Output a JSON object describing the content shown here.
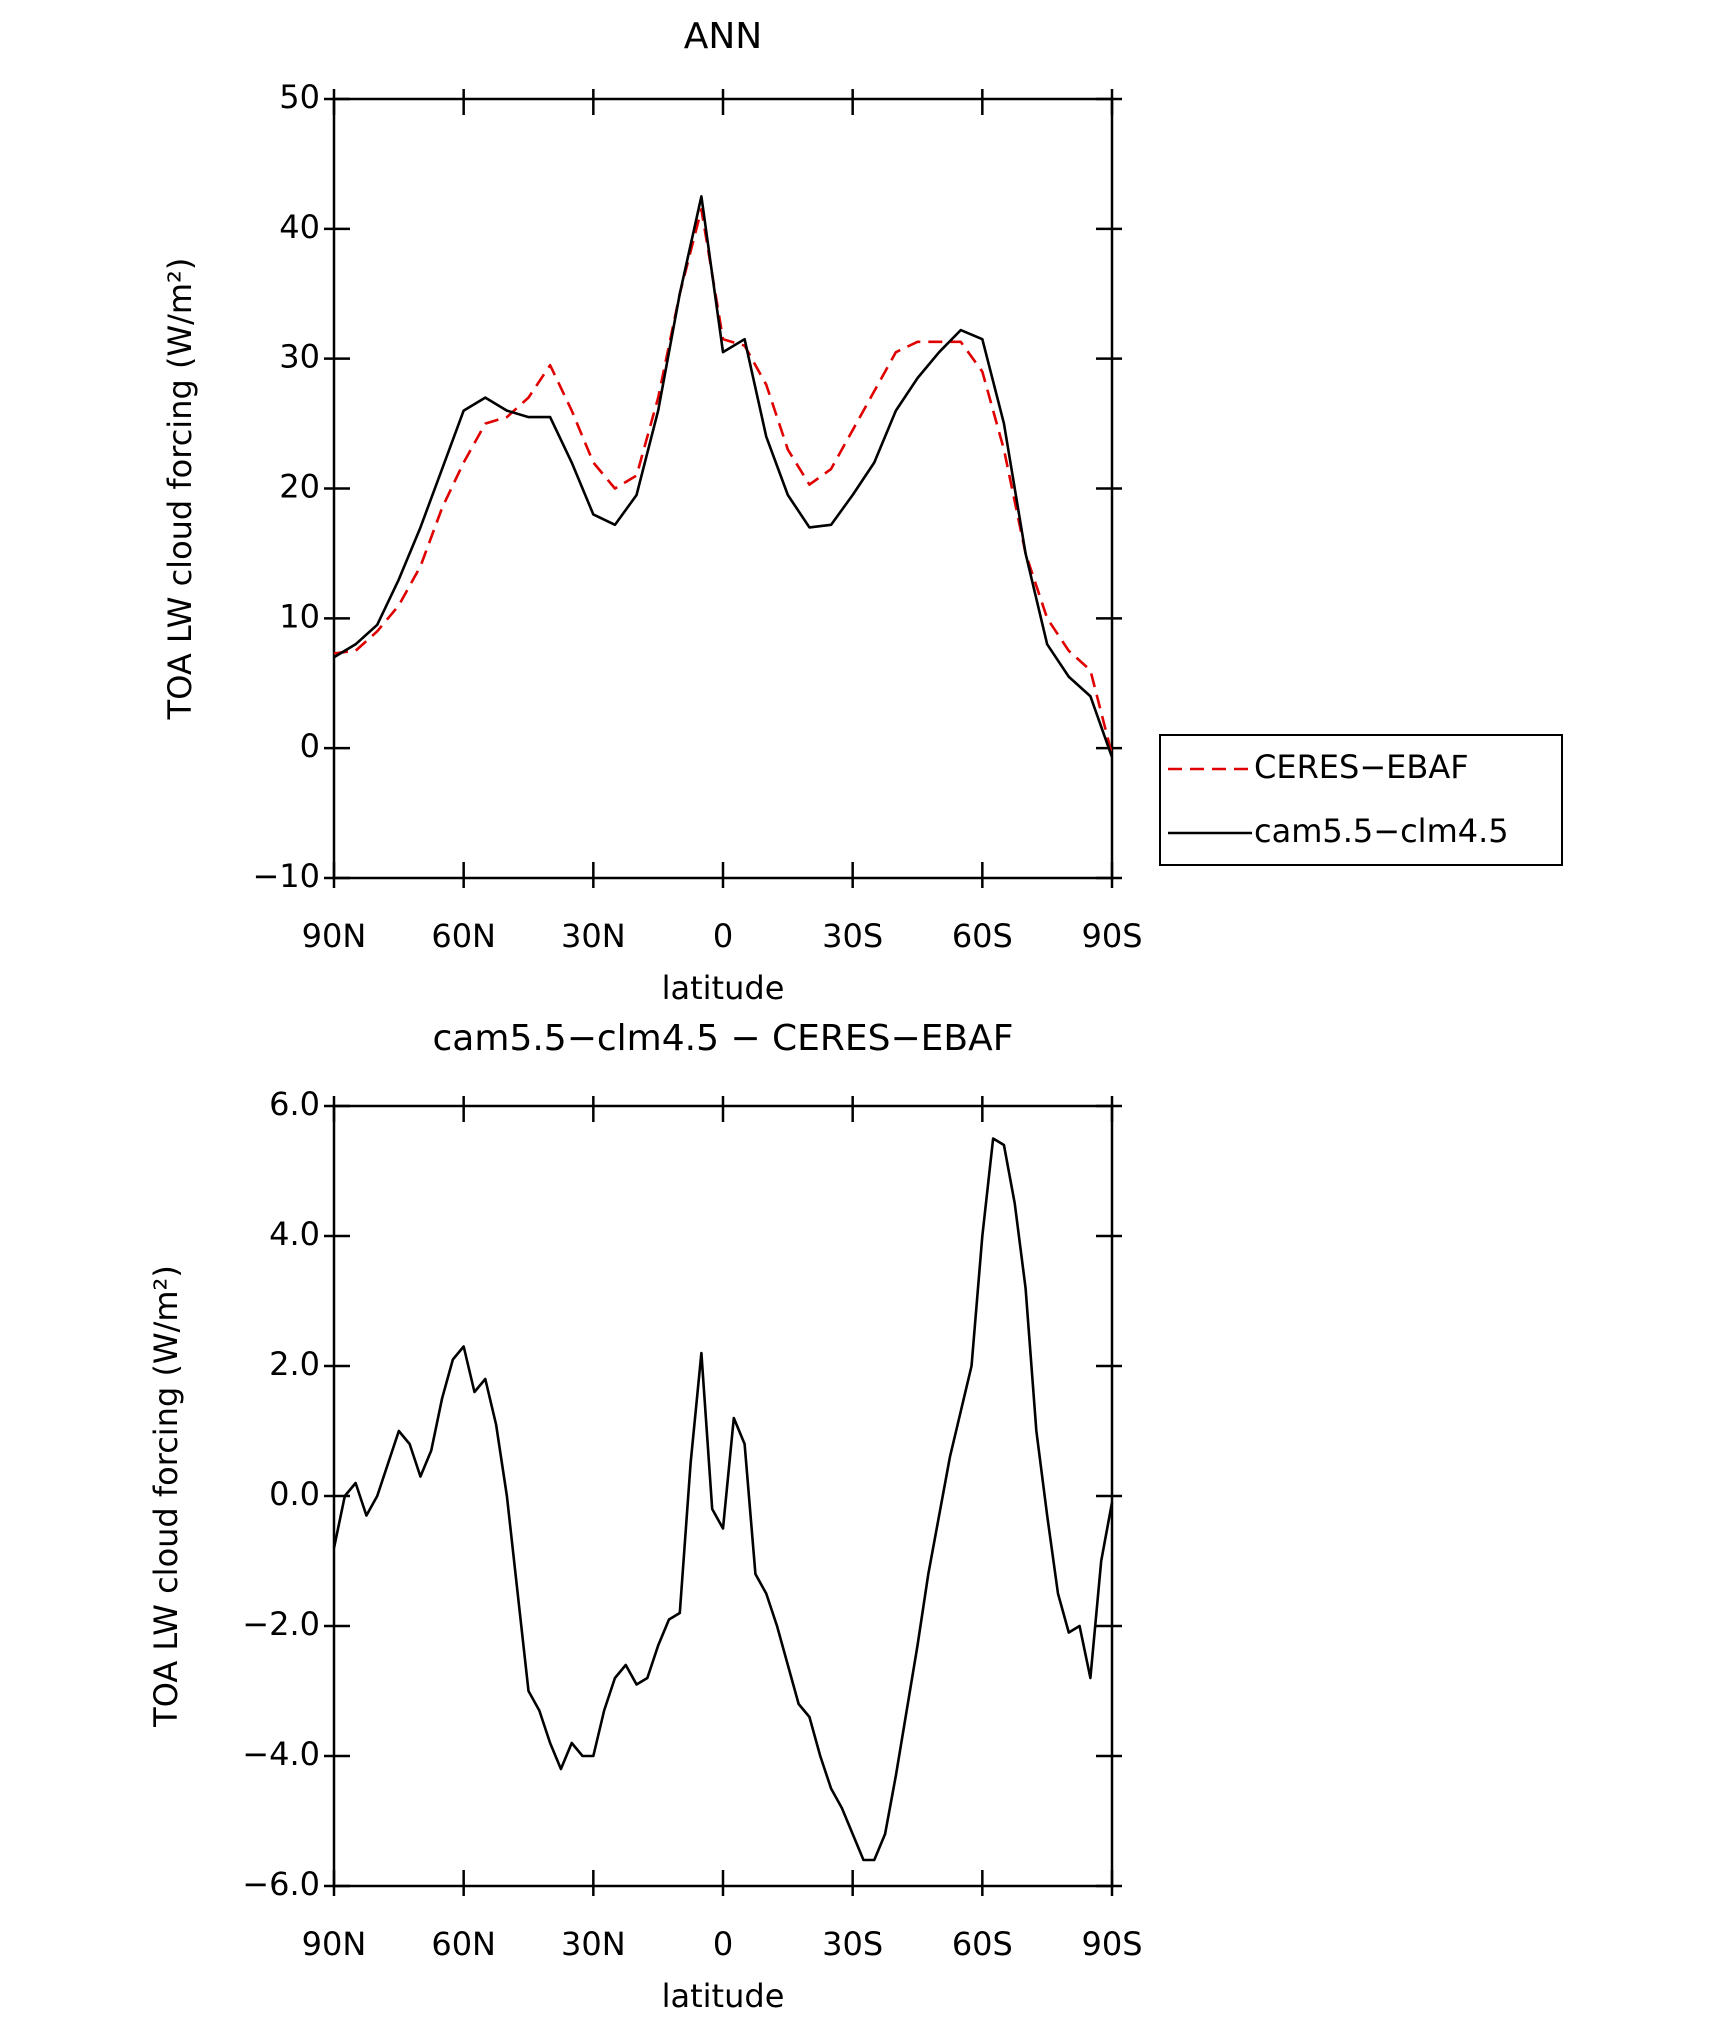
{
  "chart_data": [
    {
      "type": "line",
      "title": "ANN",
      "xlabel": "latitude",
      "ylabel": "TOA LW cloud forcing (W/m²)",
      "x": [
        90,
        85,
        80,
        75,
        70,
        65,
        60,
        55,
        50,
        45,
        40,
        35,
        30,
        25,
        20,
        15,
        10,
        5,
        0,
        -5,
        -10,
        -15,
        -20,
        -25,
        -30,
        -35,
        -40,
        -45,
        -50,
        -55,
        -60,
        -65,
        -70,
        -75,
        -80,
        -85,
        -90
      ],
      "series": [
        {
          "name": "CERES−EBAF",
          "color": "#e00000",
          "dash": "dashed",
          "values": [
            7.3,
            7.5,
            9,
            11,
            14,
            18.5,
            22,
            25,
            25.5,
            27,
            29.5,
            26,
            22,
            20,
            21,
            27,
            35,
            41.5,
            31.5,
            31,
            28,
            23,
            20.3,
            21.5,
            24.5,
            27.5,
            30.5,
            31.3,
            31.3,
            31.3,
            29,
            23,
            15,
            10,
            7.5,
            6,
            -0.5
          ]
        },
        {
          "name": "cam5.5−clm4.5",
          "color": "#000000",
          "dash": "solid",
          "values": [
            7,
            8,
            9.5,
            13,
            17,
            21.5,
            26,
            27,
            26,
            25.5,
            25.5,
            22,
            18,
            17.2,
            19.5,
            26,
            35,
            42.5,
            30.5,
            31.5,
            24,
            19.5,
            17,
            17.2,
            19.5,
            22,
            26,
            28.5,
            30.5,
            32.2,
            31.5,
            25,
            15,
            8,
            5.5,
            4,
            -0.7
          ]
        }
      ],
      "xlim": [
        90,
        -90
      ],
      "xticks": [
        {
          "value": 90,
          "label": "90N"
        },
        {
          "value": 60,
          "label": "60N"
        },
        {
          "value": 30,
          "label": "30N"
        },
        0,
        {
          "value": -30,
          "label": "30S"
        },
        {
          "value": -60,
          "label": "60S"
        },
        {
          "value": -90,
          "label": "90S"
        }
      ],
      "ylim": [
        -10,
        50
      ],
      "yticks": [
        {
          "value": -10,
          "label": "−10"
        },
        0,
        10,
        20,
        30,
        40,
        50
      ],
      "legend": "outside-right"
    },
    {
      "type": "line",
      "title": "cam5.5−clm4.5 − CERES−EBAF",
      "xlabel": "latitude",
      "ylabel": "TOA LW cloud forcing (W/m²)",
      "x": [
        90,
        87.5,
        85,
        82.5,
        80,
        77.5,
        75,
        72.5,
        70,
        67.5,
        65,
        62.5,
        60,
        57.5,
        55,
        52.5,
        50,
        47.5,
        45,
        42.5,
        40,
        37.5,
        35,
        32.5,
        30,
        27.5,
        25,
        22.5,
        20,
        17.5,
        15,
        12.5,
        10,
        7.5,
        5,
        2.5,
        0,
        -2.5,
        -5,
        -7.5,
        -10,
        -12.5,
        -15,
        -17.5,
        -20,
        -22.5,
        -25,
        -27.5,
        -30,
        -32.5,
        -35,
        -37.5,
        -40,
        -42.5,
        -45,
        -47.5,
        -50,
        -52.5,
        -55,
        -57.5,
        -60,
        -62.5,
        -65,
        -67.5,
        -70,
        -72.5,
        -75,
        -77.5,
        -80,
        -82.5,
        -85,
        -87.5,
        -90
      ],
      "series": [
        {
          "name": "cam5.5−clm4.5 − CERES−EBAF",
          "color": "#000000",
          "dash": "solid",
          "values": [
            -0.8,
            0,
            0.2,
            -0.3,
            0,
            0.5,
            1.0,
            0.8,
            0.3,
            0.7,
            1.5,
            2.1,
            2.3,
            1.6,
            1.8,
            1.1,
            0,
            -1.5,
            -3.0,
            -3.3,
            -3.8,
            -4.2,
            -3.8,
            -4.0,
            -4.0,
            -3.3,
            -2.8,
            -2.6,
            -2.9,
            -2.8,
            -2.3,
            -1.9,
            -1.8,
            0.5,
            2.2,
            -0.2,
            -0.5,
            1.2,
            0.8,
            -1.2,
            -1.5,
            -2.0,
            -2.6,
            -3.2,
            -3.4,
            -4.0,
            -4.5,
            -4.8,
            -5.2,
            -5.6,
            -5.6,
            -5.2,
            -4.3,
            -3.3,
            -2.3,
            -1.2,
            -0.3,
            0.6,
            1.3,
            2.0,
            4.0,
            5.5,
            5.4,
            4.5,
            3.2,
            1.0,
            -0.3,
            -1.5,
            -2.1,
            -2.0,
            -2.8,
            -1.0,
            -0.1
          ]
        }
      ],
      "xlim": [
        90,
        -90
      ],
      "xticks": [
        {
          "value": 90,
          "label": "90N"
        },
        {
          "value": 60,
          "label": "60N"
        },
        {
          "value": 30,
          "label": "30N"
        },
        0,
        {
          "value": -30,
          "label": "30S"
        },
        {
          "value": -60,
          "label": "60S"
        },
        {
          "value": -90,
          "label": "90S"
        }
      ],
      "ylim": [
        -6,
        6
      ],
      "yticks": [
        {
          "value": -6,
          "label": "−6.0"
        },
        {
          "value": -4,
          "label": "−4.0"
        },
        {
          "value": -2,
          "label": "−2.0"
        },
        {
          "value": 0,
          "label": "0.0"
        },
        {
          "value": 2,
          "label": "2.0"
        },
        {
          "value": 4,
          "label": "4.0"
        },
        {
          "value": 6,
          "label": "6.0"
        }
      ]
    }
  ]
}
